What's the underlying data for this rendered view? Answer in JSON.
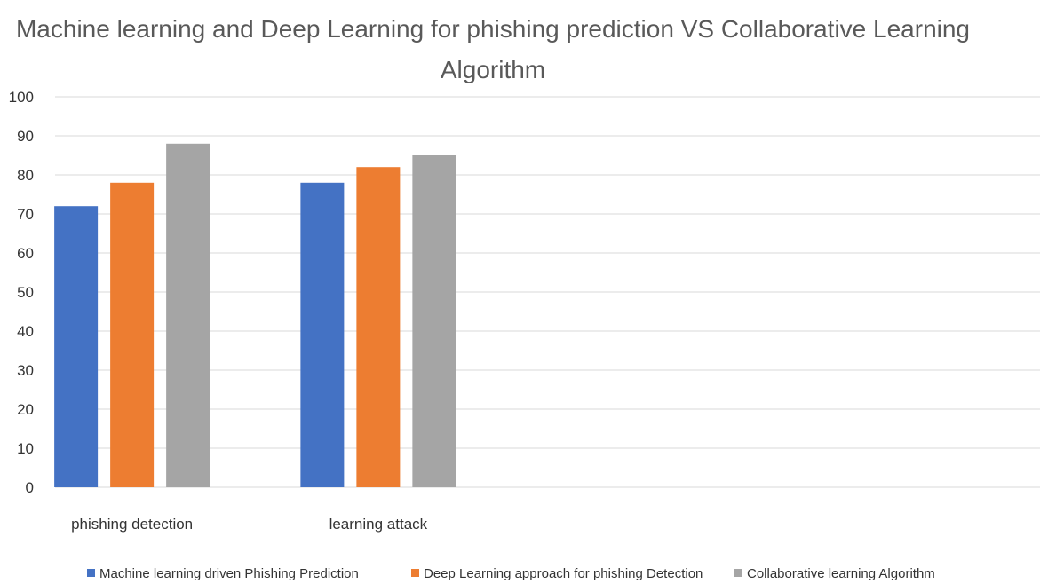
{
  "chart_data": {
    "type": "bar",
    "title": "Machine learning and Deep Learning for phishing prediction VS Collaborative Learning Algorithm",
    "title_lines": [
      "Machine learning and Deep Learning for phishing prediction VS Collaborative Learning",
      "Algorithm"
    ],
    "xlabel": "",
    "ylabel": "",
    "ylim": [
      0,
      100
    ],
    "yticks": [
      0,
      10,
      20,
      30,
      40,
      50,
      60,
      70,
      80,
      90,
      100
    ],
    "grid": true,
    "legend_position": "bottom",
    "categories": [
      "phishing detection",
      "learning attack"
    ],
    "category_slots": 4,
    "series": [
      {
        "name": "Machine learning driven Phishing Prediction",
        "color": "#4472c4",
        "values": [
          72,
          78
        ]
      },
      {
        "name": "Deep Learning approach for phishing Detection",
        "color": "#ed7d31",
        "values": [
          78,
          82
        ]
      },
      {
        "name": "Collaborative learning Algorithm",
        "color": "#a5a5a5",
        "values": [
          88,
          85
        ]
      }
    ]
  }
}
